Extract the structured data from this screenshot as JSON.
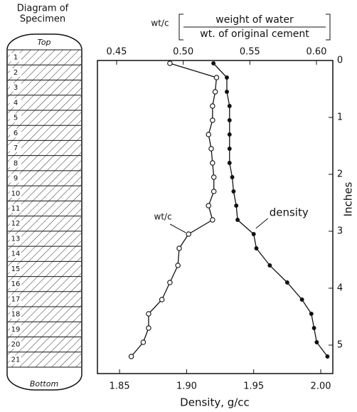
{
  "diagram": {
    "title_lines": [
      "Diagram of",
      "Specimen"
    ],
    "top": "Top",
    "bottom": "Bottom",
    "slices": [
      "1",
      "2",
      "3",
      "4",
      "5",
      "6",
      "7",
      "8",
      "9",
      "10",
      "11",
      "12",
      "13",
      "14",
      "15",
      "16",
      "17",
      "18",
      "19",
      "20",
      "21"
    ]
  },
  "chart_data": {
    "type": "line",
    "x_label": "Density, g/cc",
    "x2_label": {
      "symbol": "wt/c",
      "numerator": "weight of water",
      "denominator": "wt. of original cement"
    },
    "y_label": "Inches",
    "y_inverted": true,
    "xlim": [
      1.8335,
      2.009
    ],
    "xticks": [
      {
        "value": 1.85,
        "label": "1.85"
      },
      {
        "value": 1.9,
        "label": "1.90"
      },
      {
        "value": 1.95,
        "label": "1.95"
      },
      {
        "value": 2.0,
        "label": "2.00"
      }
    ],
    "x2lim": [
      0.4356,
      0.6123
    ],
    "x2ticks": [
      {
        "value": 0.45,
        "label": "0.45"
      },
      {
        "value": 0.5,
        "label": "0.50"
      },
      {
        "value": 0.55,
        "label": "0.55"
      },
      {
        "value": 0.6,
        "label": "0.60"
      }
    ],
    "ylim": [
      0,
      5.5
    ],
    "yticks": [
      0,
      1,
      2,
      3,
      4,
      5
    ],
    "y": [
      0.05,
      0.3,
      0.55,
      0.8,
      1.05,
      1.3,
      1.55,
      1.8,
      2.05,
      2.3,
      2.55,
      2.8,
      3.05,
      3.3,
      3.6,
      3.9,
      4.2,
      4.45,
      4.7,
      4.95,
      5.2
    ],
    "series": [
      {
        "name": "density",
        "color": "#111111",
        "marker": "filled",
        "values": [
          1.92,
          1.93,
          1.93,
          1.932,
          1.932,
          1.932,
          1.932,
          1.932,
          1.934,
          1.935,
          1.937,
          1.938,
          1.95,
          1.952,
          1.962,
          1.975,
          1.986,
          1.993,
          1.995,
          1.997,
          2.005
        ]
      },
      {
        "name": "wt/c",
        "color": "#111111",
        "marker": "open",
        "axis": "x2",
        "values": [
          0.49,
          0.525,
          0.524,
          0.522,
          0.522,
          0.519,
          0.521,
          0.522,
          0.523,
          0.523,
          0.519,
          0.522,
          0.504,
          0.497,
          0.496,
          0.49,
          0.484,
          0.474,
          0.474,
          0.47,
          0.461
        ]
      }
    ]
  }
}
